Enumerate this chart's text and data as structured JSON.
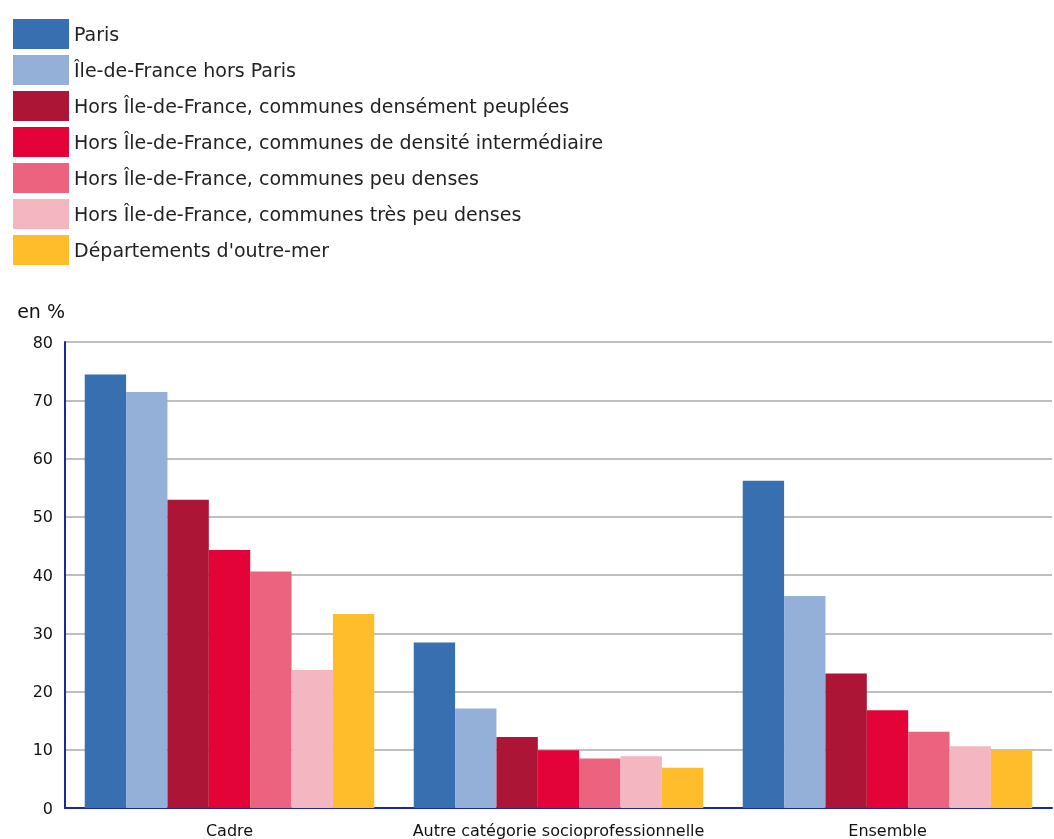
{
  "chart_data": {
    "type": "bar",
    "ylabel": "en %",
    "categories": [
      "Cadre",
      "Autre catégorie socioprofessionnelle",
      "Ensemble"
    ],
    "series": [
      {
        "name": "Paris",
        "color": "#376fb0",
        "values": [
          74.4,
          28.4,
          56.2
        ]
      },
      {
        "name": "Île-de-France hors Paris",
        "color": "#94b0d8",
        "values": [
          71.4,
          17.1,
          36.4
        ]
      },
      {
        "name": "Hors Île-de-France, communes densément peuplées",
        "color": "#ad1537",
        "values": [
          52.9,
          12.2,
          23.1
        ]
      },
      {
        "name": "Hors Île-de-France, communes de densité intermédiaire",
        "color": "#e30338",
        "values": [
          44.3,
          9.9,
          16.8
        ]
      },
      {
        "name": "Hors Île-de-France, communes peu denses",
        "color": "#ec637f",
        "values": [
          40.6,
          8.5,
          13.1
        ]
      },
      {
        "name": "Hors Île-de-France, communes très peu denses",
        "color": "#f4b6c0",
        "values": [
          23.7,
          8.9,
          10.6
        ]
      },
      {
        "name": "Départements d'outre-mer",
        "color": "#ffbd2c",
        "values": [
          33.3,
          6.9,
          9.9
        ]
      }
    ],
    "ylim": [
      0,
      80
    ],
    "yticks": [
      0,
      10,
      20,
      30,
      40,
      50,
      60,
      70,
      80
    ],
    "grid": "y",
    "legend": "top left"
  }
}
